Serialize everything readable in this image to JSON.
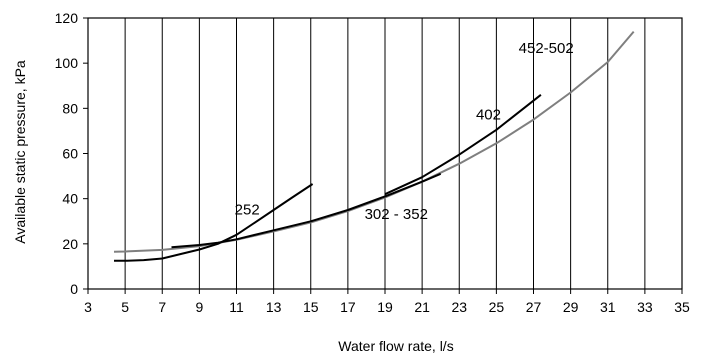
{
  "chart_data": {
    "type": "line",
    "xlabel": "Water flow rate, l/s",
    "ylabel": "Available static pressure, kPa",
    "xlim": [
      3,
      35
    ],
    "ylim": [
      0,
      120
    ],
    "xticks": [
      "3",
      "5",
      "7",
      "9",
      "11",
      "13",
      "15",
      "17",
      "19",
      "21",
      "23",
      "25",
      "27",
      "29",
      "31",
      "33",
      "35"
    ],
    "yticks": [
      "0",
      "20",
      "40",
      "60",
      "80",
      "100",
      "120"
    ],
    "grid": "vertical",
    "series": [
      {
        "name": "252",
        "color": "#000000",
        "points": [
          [
            4.4,
            12.5
          ],
          [
            5,
            12.5
          ],
          [
            6,
            12.8
          ],
          [
            7,
            13.5
          ],
          [
            8,
            15.5
          ],
          [
            9,
            17.5
          ],
          [
            10,
            20
          ],
          [
            11,
            24
          ],
          [
            12,
            29.5
          ],
          [
            13,
            35
          ],
          [
            14,
            40.5
          ],
          [
            15.1,
            46.5
          ]
        ]
      },
      {
        "name": "302 - 352",
        "color": "#000000",
        "points": [
          [
            7.5,
            18.5
          ],
          [
            9,
            19.5
          ],
          [
            10,
            20.5
          ],
          [
            11,
            22
          ],
          [
            13,
            26
          ],
          [
            15,
            30
          ],
          [
            17,
            35
          ],
          [
            19,
            41
          ],
          [
            21,
            47.5
          ],
          [
            22,
            51
          ]
        ]
      },
      {
        "name": "402",
        "color": "#000000",
        "points": [
          [
            19,
            42
          ],
          [
            21,
            49.5
          ],
          [
            23,
            59.5
          ],
          [
            25,
            70.5
          ],
          [
            27.4,
            86
          ]
        ]
      },
      {
        "name": "452-502",
        "color": "#7f7f7f",
        "points": [
          [
            4.4,
            16.5
          ],
          [
            5,
            16.6
          ],
          [
            7,
            17.3
          ],
          [
            9,
            19
          ],
          [
            11,
            21.8
          ],
          [
            13,
            25.5
          ],
          [
            15,
            29.5
          ],
          [
            17,
            34.5
          ],
          [
            19,
            40.5
          ],
          [
            21,
            47.5
          ],
          [
            23,
            55.5
          ],
          [
            25,
            64.5
          ],
          [
            27,
            75
          ],
          [
            29,
            87
          ],
          [
            31,
            100.5
          ],
          [
            32.4,
            114
          ]
        ]
      }
    ]
  }
}
